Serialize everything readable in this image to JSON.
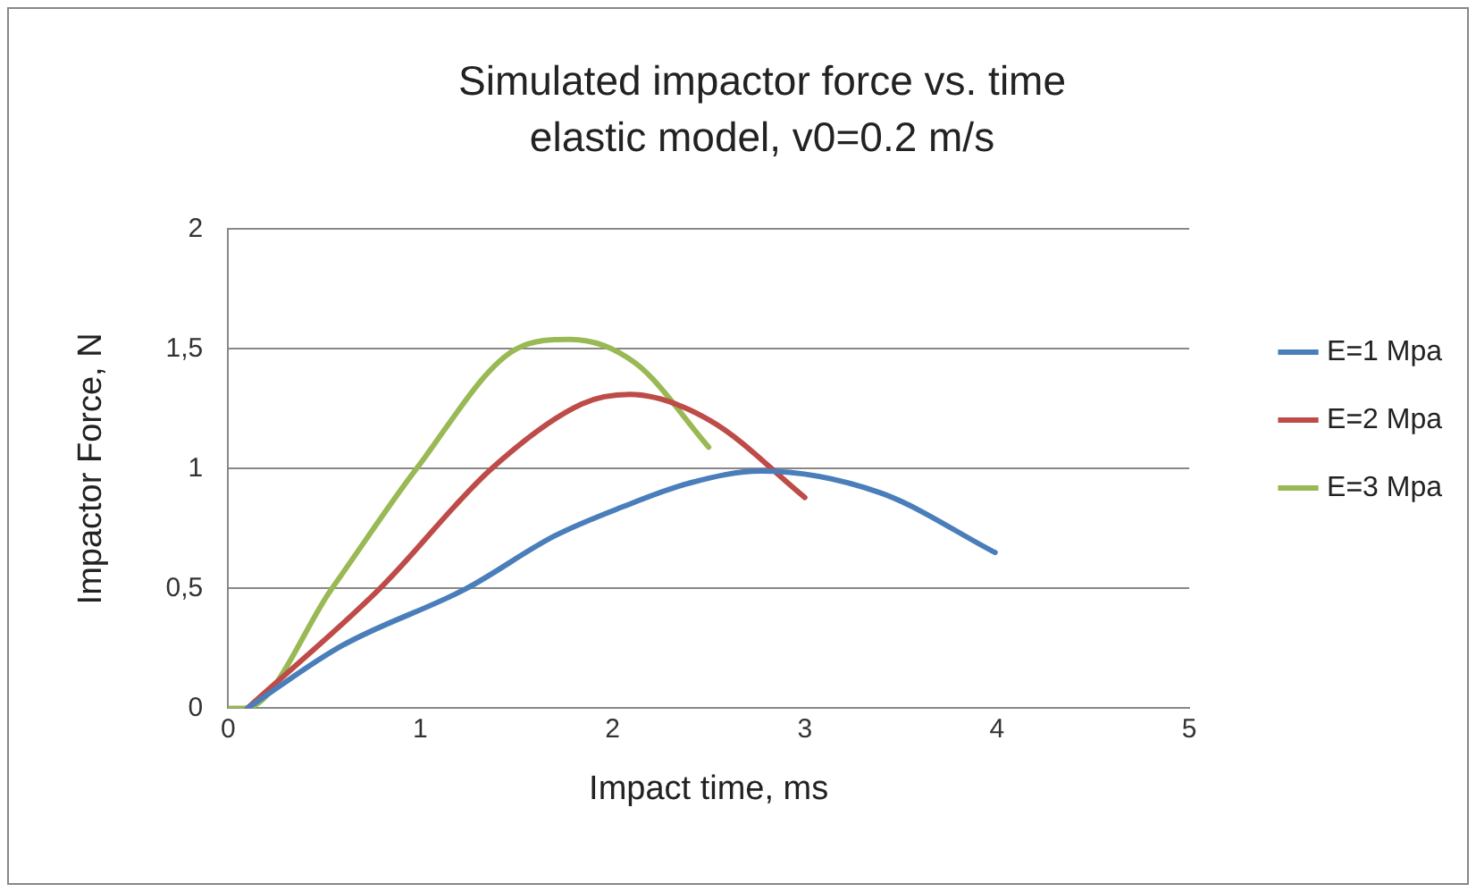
{
  "chart_data": {
    "type": "line",
    "title": "Simulated impactor force vs. time",
    "subtitle": "elastic model, v0=0.2 m/s",
    "xlabel": "Impact time, ms",
    "ylabel": "Impactor Force, N",
    "xlim": [
      0,
      5
    ],
    "xticks": [
      0,
      1,
      2,
      3,
      4,
      5
    ],
    "ylim": [
      0,
      2
    ],
    "yticks": [
      0,
      {
        "value": 0.5,
        "label": "0,5"
      },
      1,
      {
        "value": 1.5,
        "label": "1,5"
      },
      2
    ],
    "grid": "y",
    "legend": "right",
    "marker": "none",
    "line_style": "solid",
    "series": [
      {
        "name": "E=1 Mpa",
        "color": "#4a7ebb",
        "x": [
          0.1,
          0.59,
          1.24,
          1.7,
          2.05,
          2.4,
          2.77,
          3.39,
          3.99
        ],
        "values": [
          0,
          0.26,
          0.5,
          0.72,
          0.84,
          0.94,
          0.99,
          0.9,
          0.65
        ]
      },
      {
        "name": "E=2 Mpa",
        "color": "#be4b48",
        "x": [
          0.1,
          0.79,
          1.37,
          1.84,
          2.09,
          2.51,
          3
        ],
        "values": [
          0,
          0.5,
          1,
          1.27,
          1.31,
          1.2,
          0.88
        ]
      },
      {
        "name": "E=3 Mpa",
        "color": "#98b954",
        "x": [
          0,
          0.09,
          0.54,
          0.98,
          1.5,
          1.78,
          2.12,
          2.5
        ],
        "values": [
          0,
          0,
          0.5,
          1,
          1.5,
          1.54,
          1.44,
          1.09
        ]
      }
    ]
  }
}
